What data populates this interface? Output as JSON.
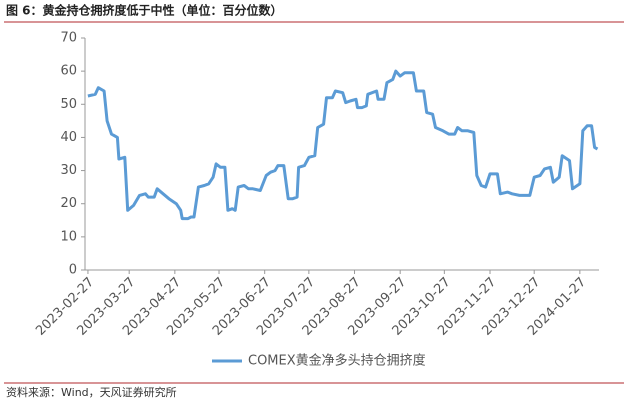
{
  "header": {
    "title": "图 6：黄金持仓拥挤度低于中性（单位：百分位数）"
  },
  "chart_data": {
    "type": "line",
    "x": [
      "2023-02-27",
      "2023-03-04",
      "2023-03-06",
      "2023-03-10",
      "2023-03-12",
      "2023-03-15",
      "2023-03-19",
      "2023-03-20",
      "2023-03-24",
      "2023-03-26",
      "2023-03-30",
      "2023-04-03",
      "2023-04-07",
      "2023-04-09",
      "2023-04-13",
      "2023-04-15",
      "2023-04-19",
      "2023-04-23",
      "2023-04-28",
      "2023-05-01",
      "2023-05-02",
      "2023-05-06",
      "2023-05-08",
      "2023-05-10",
      "2023-05-13",
      "2023-05-17",
      "2023-05-20",
      "2023-05-23",
      "2023-05-25",
      "2023-05-28",
      "2023-05-31",
      "2023-06-02",
      "2023-06-05",
      "2023-06-07",
      "2023-06-09",
      "2023-06-13",
      "2023-06-16",
      "2023-06-19",
      "2023-06-24",
      "2023-06-28",
      "2023-07-01",
      "2023-07-04",
      "2023-07-06",
      "2023-07-10",
      "2023-07-13",
      "2023-07-16",
      "2023-07-19",
      "2023-07-20",
      "2023-07-24",
      "2023-07-27",
      "2023-07-31",
      "2023-08-02",
      "2023-08-06",
      "2023-08-08",
      "2023-08-12",
      "2023-08-14",
      "2023-08-19",
      "2023-08-21",
      "2023-08-24",
      "2023-08-28",
      "2023-08-29",
      "2023-09-01",
      "2023-09-04",
      "2023-09-05",
      "2023-09-11",
      "2023-09-12",
      "2023-09-16",
      "2023-09-18",
      "2023-09-22",
      "2023-09-24",
      "2023-09-27",
      "2023-09-30",
      "2023-10-06",
      "2023-10-08",
      "2023-10-13",
      "2023-10-15",
      "2023-10-19",
      "2023-10-21",
      "2023-10-26",
      "2023-10-30",
      "2023-11-03",
      "2023-11-05",
      "2023-11-08",
      "2023-11-12",
      "2023-11-16",
      "2023-11-18",
      "2023-11-21",
      "2023-11-24",
      "2023-11-27",
      "2023-12-02",
      "2023-12-04",
      "2023-12-09",
      "2023-12-12",
      "2023-12-17",
      "2023-12-24",
      "2023-12-27",
      "2023-12-31",
      "2024-01-03",
      "2024-01-07",
      "2024-01-09",
      "2024-01-13",
      "2024-01-15",
      "2024-01-20",
      "2024-01-22",
      "2024-01-27",
      "2024-01-29",
      "2024-02-01",
      "2024-02-04",
      "2024-02-06",
      "2024-02-08"
    ],
    "series": [
      {
        "name": "COMEX黄金净多头持仓拥挤度",
        "color": "#5b9bd5",
        "values": [
          52.5,
          53,
          55,
          54,
          45,
          41,
          40,
          33.5,
          34,
          18,
          19.5,
          22.5,
          23,
          22,
          22,
          24.5,
          23,
          21.5,
          20,
          18,
          15.5,
          15.5,
          16,
          16,
          25,
          25.5,
          26,
          28,
          32,
          31,
          31,
          18,
          18.5,
          18,
          25,
          25.5,
          24.5,
          24.5,
          24,
          28.5,
          29.5,
          30,
          31.5,
          31.5,
          21.5,
          21.5,
          22,
          31,
          31.5,
          34,
          34.5,
          43,
          44,
          52,
          52,
          54,
          53.5,
          50.5,
          51,
          51.5,
          49,
          49,
          49.5,
          53,
          54,
          51.5,
          51.5,
          56.5,
          57.5,
          60,
          58.5,
          59.5,
          59.5,
          54,
          54,
          47.5,
          47,
          43,
          42,
          41,
          41,
          43,
          42,
          42,
          41.5,
          28.5,
          25.5,
          25,
          29,
          29,
          23,
          23.5,
          23,
          22.5,
          22.5,
          28,
          28.5,
          30.5,
          31,
          26.5,
          28,
          34.5,
          33,
          24.5,
          26,
          42,
          43.5,
          43.5,
          37,
          36.5
        ]
      }
    ],
    "xlim": [
      "2023-02-25",
      "2024-02-09"
    ],
    "xticks": [
      "2023-02-27",
      "2023-03-27",
      "2023-04-27",
      "2023-05-27",
      "2023-06-27",
      "2023-07-27",
      "2023-08-27",
      "2023-09-27",
      "2023-10-27",
      "2023-11-27",
      "2023-12-27",
      "2024-01-27"
    ],
    "ylim": [
      0,
      70
    ],
    "yticks": [
      0,
      10,
      20,
      30,
      40,
      50,
      60,
      70
    ],
    "grid": false,
    "legend": "bottom"
  },
  "footer": {
    "source": "资料来源：Wind，天风证券研究所"
  }
}
